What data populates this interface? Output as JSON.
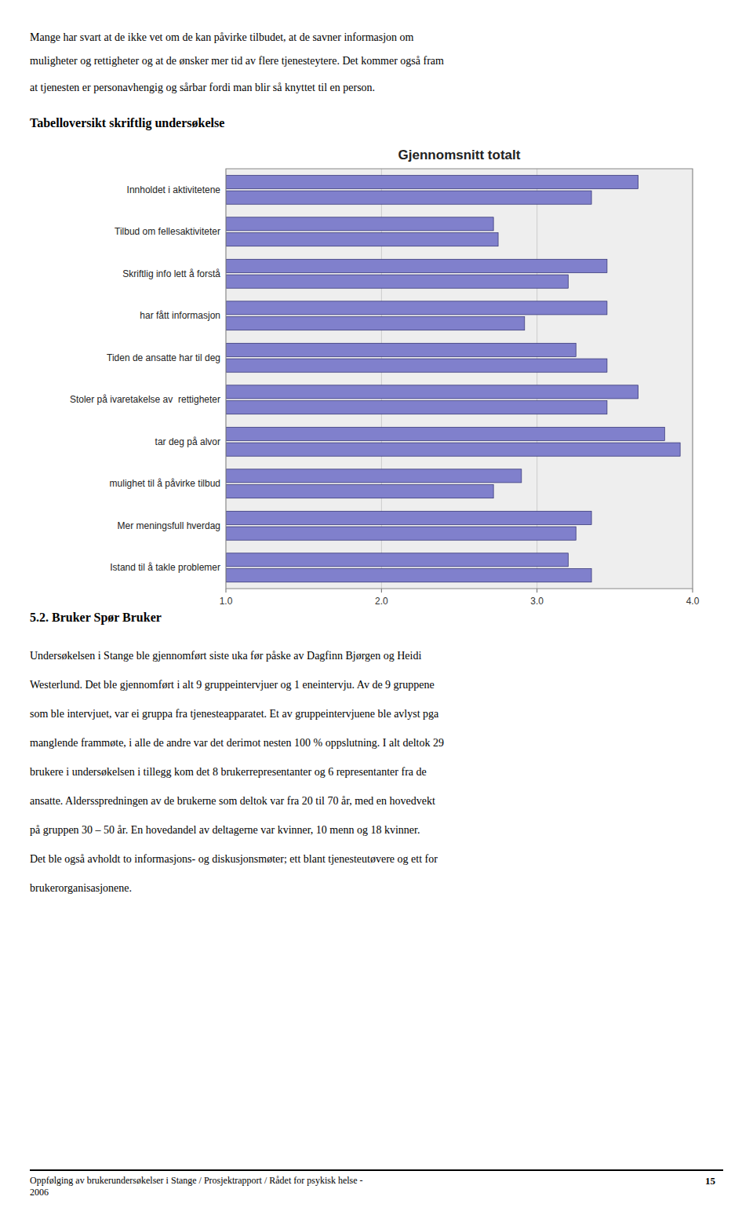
{
  "chart_data": {
    "type": "bar",
    "orientation": "horizontal",
    "title": "Gjennomsnitt totalt",
    "categories": [
      "Innholdet i aktivitetene",
      "Tilbud om fellesaktiviteter",
      "Skriftlig info lett å forstå",
      "har fått informasjon",
      "Tiden de ansatte har til deg",
      "Stoler på ivaretakelse av  rettigheter",
      "tar deg på alvor",
      "mulighet til å påvirke tilbud",
      "Mer meningsfull hverdag",
      "Istand til å takle problemer"
    ],
    "series": [
      {
        "color": "#8080cc",
        "values": [
          3.65,
          2.72,
          3.45,
          3.45,
          3.25,
          3.65,
          3.82,
          2.9,
          3.35,
          3.2
        ]
      },
      {
        "color": "#8080cc",
        "values": [
          3.35,
          2.75,
          3.2,
          2.92,
          3.45,
          3.45,
          3.92,
          2.72,
          3.25,
          3.35
        ]
      }
    ],
    "xlim": [
      1.0,
      4.0
    ],
    "xticks": [
      {
        "value": 1.0,
        "label": "1.0"
      },
      {
        "value": 2.0,
        "label": "2.0"
      },
      {
        "value": 3.0,
        "label": "3.0"
      },
      {
        "value": 4.0,
        "label": "4.0"
      }
    ],
    "grid": true
  },
  "page": {
    "paragraph_lines": [
      "Mange har svart at de ikke vet om de kan påvirke tilbudet, at de savner informasjon om",
      "muligheter og rettigheter og at de ønsker mer tid av flere tjenesteytere. Det kommer også fram",
      "at tjenesten er personavhengig og sårbar fordi man blir så knyttet til en person."
    ],
    "section_title": "Tabelloversikt skriftlig undersøkelse",
    "section52_title": "5.2. Bruker Spør Bruker",
    "section52_lines": [
      "Undersøkelsen i Stange ble gjennomført siste uka før påske av Dagfinn Bjørgen og Heidi",
      "Westerlund. Det ble gjennomført i alt 9 gruppeintervjuer og 1 eneintervju. Av de 9 gruppene",
      "som ble intervjuet, var ei gruppa fra tjenesteapparatet. Et av gruppeintervjuene ble avlyst pga",
      "manglende frammøte, i alle de andre var det derimot nesten 100 % oppslutning. I alt deltok 29",
      "brukere i undersøkelsen i tillegg kom det 8 brukerrepresentanter og 6 representanter fra de",
      "ansatte. Aldersspredningen av de brukerne som deltok var fra 20 til 70 år, med en hovedvekt",
      "på gruppen 30 – 50 år. En hovedandel av deltagerne var kvinner, 10 menn og 18 kvinner.",
      "Det ble også avholdt to informasjons- og diskusjonsmøter; ett blant tjenesteutøvere og ett for",
      "brukerorganisasjonene."
    ],
    "footer_lines": [
      "Oppfølging av brukerundersøkelser i Stange / Prosjektrapport / Rådet for psykisk helse -",
      "2006"
    ],
    "page_number": "15"
  }
}
